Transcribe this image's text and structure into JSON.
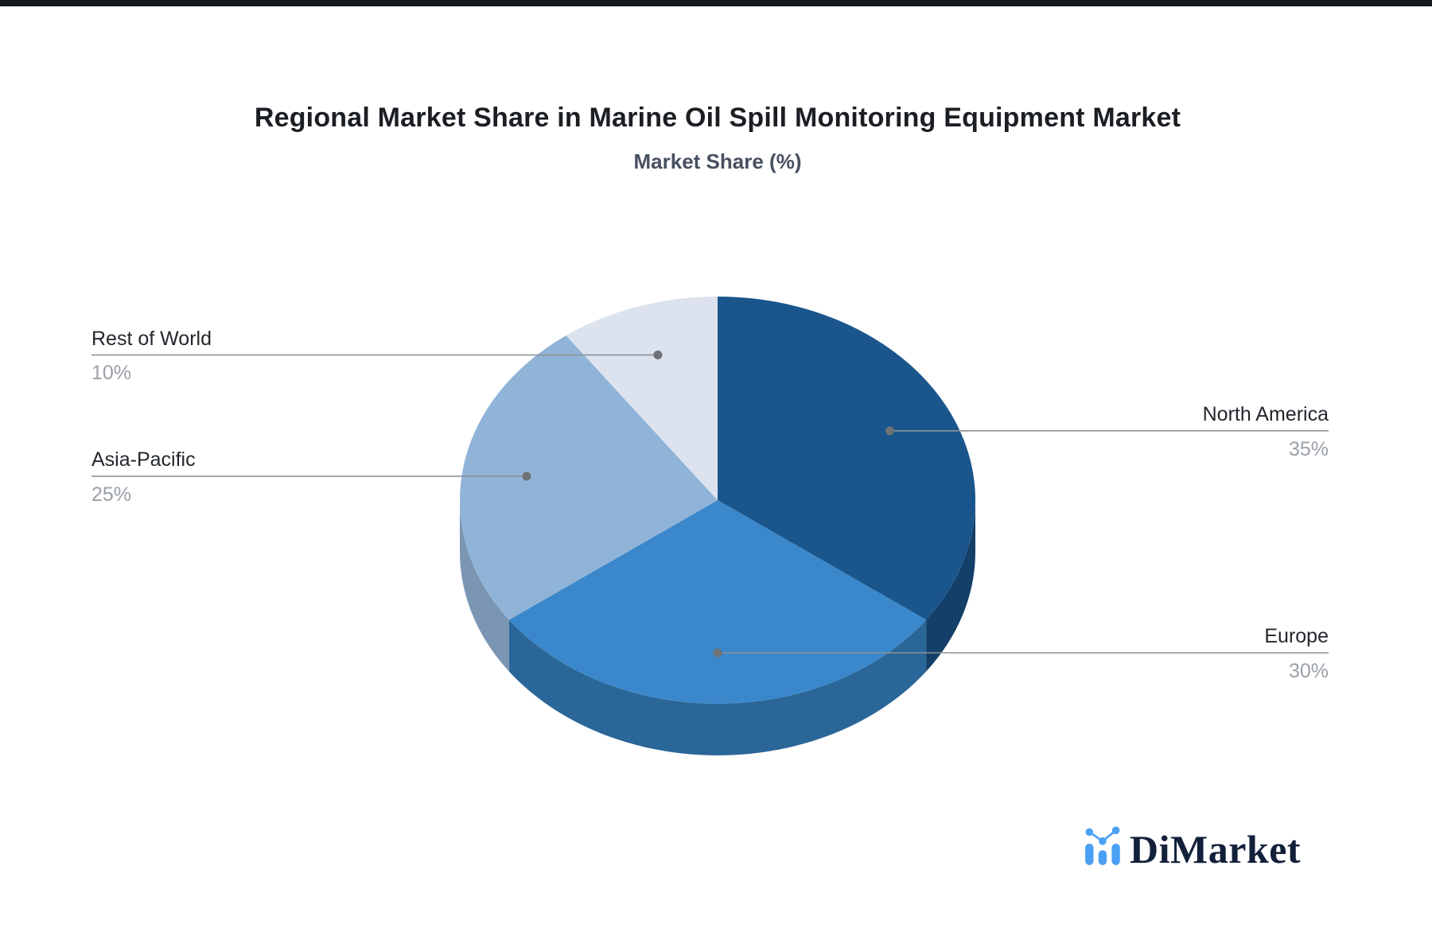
{
  "title": "Regional Market Share in Marine Oil Spill Monitoring Equipment Market",
  "subtitle": "Market Share (%)",
  "chart_data": {
    "type": "pie",
    "title": "Regional Market Share in Marine Oil Spill Monitoring Equipment Market",
    "subtitle": "Market Share (%)",
    "unit": "%",
    "style": "3d-pie",
    "direction": "clockwise",
    "start_angle": "12-o-clock",
    "legend_position": "callout-labels",
    "categories": [
      "North America",
      "Europe",
      "Asia-Pacific",
      "Rest of World"
    ],
    "values": [
      35,
      30,
      25,
      10
    ],
    "slices": [
      {
        "name": "North America",
        "value": 35,
        "label": "35%",
        "color": "#1a568c",
        "side_color": "#133f68",
        "label_side": "right"
      },
      {
        "name": "Europe",
        "value": 30,
        "label": "30%",
        "color": "#3a88cb",
        "side_color": "#2b6699",
        "label_side": "right"
      },
      {
        "name": "Asia-Pacific",
        "value": 25,
        "label": "25%",
        "color": "#90b4d8",
        "side_color": "#7b96b3",
        "label_side": "left"
      },
      {
        "name": "Rest of World",
        "value": 10,
        "label": "10%",
        "color": "#dce3ee",
        "side_color": "#b9c4d4",
        "label_side": "left"
      }
    ],
    "callout_line_color": "#8d9297",
    "callout_dot_color": "#6e7276",
    "name_text_color": "#23272d",
    "value_text_color": "#9aa0a7"
  },
  "branding": {
    "logo_text": "DiMarket",
    "logo_icon": "bar-chart-logo-icon",
    "logo_accent_color": "#4aa0f4",
    "logo_text_color": "#13203a"
  }
}
